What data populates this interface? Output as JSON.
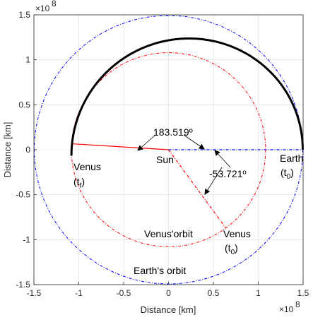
{
  "chart_data": {
    "type": "line",
    "title": "",
    "xlabel": "Distance [km]",
    "ylabel": "Distance [km]",
    "xlim": [
      -150000000.0,
      150000000.0
    ],
    "ylim": [
      -150000000.0,
      150000000.0
    ],
    "grid": true,
    "axis_exponent": "8",
    "x_ticks": [
      -150000000.0,
      -100000000.0,
      -50000000.0,
      0,
      50000000.0,
      100000000.0,
      150000000.0
    ],
    "y_ticks": [
      -150000000.0,
      -100000000.0,
      -50000000.0,
      0,
      50000000.0,
      100000000.0,
      150000000.0
    ],
    "x_tick_labels": [
      "-1.5",
      "-1",
      "-0.5",
      "0",
      "0.5",
      "1",
      "1.5"
    ],
    "y_tick_labels": [
      "-1.5",
      "-1",
      "-0.5",
      "0",
      "0.5",
      "1",
      "1.5"
    ],
    "earth_orbit": {
      "radius": 149600000.0,
      "color": "#0000ff",
      "label": "Earth's orbit"
    },
    "venus_orbit": {
      "radius": 108200000.0,
      "color": "#ff0000",
      "label": "Venus'orbit"
    },
    "transfer": {
      "color": "#000000",
      "r_start": 149600000.0,
      "r_end": 108200000.0,
      "theta_start_deg": 0,
      "theta_end_deg": 183.519,
      "peak_y": 127000000.0
    },
    "radial_lines": [
      {
        "name": "earth-line",
        "angle_deg": 0,
        "radius": 149600000.0,
        "color": "#0000ff",
        "style": "dashdot"
      },
      {
        "name": "venus-tf-line",
        "angle_deg": 176.481,
        "radius": 108200000.0,
        "color": "#ff0000",
        "style": "solid"
      },
      {
        "name": "venus-t0-line",
        "angle_deg": -53.721,
        "radius": 108200000.0,
        "color": "#ff0000",
        "style": "dashdot"
      }
    ],
    "annotations": {
      "angle_total": "183.519º",
      "angle_phase": "-53.721º",
      "sun": "Sun",
      "earth": "Earth",
      "t0": "(t",
      "t0_sub": "0",
      "venus": "Venus",
      "tf_sub": "f",
      "paren_close": ")"
    }
  }
}
